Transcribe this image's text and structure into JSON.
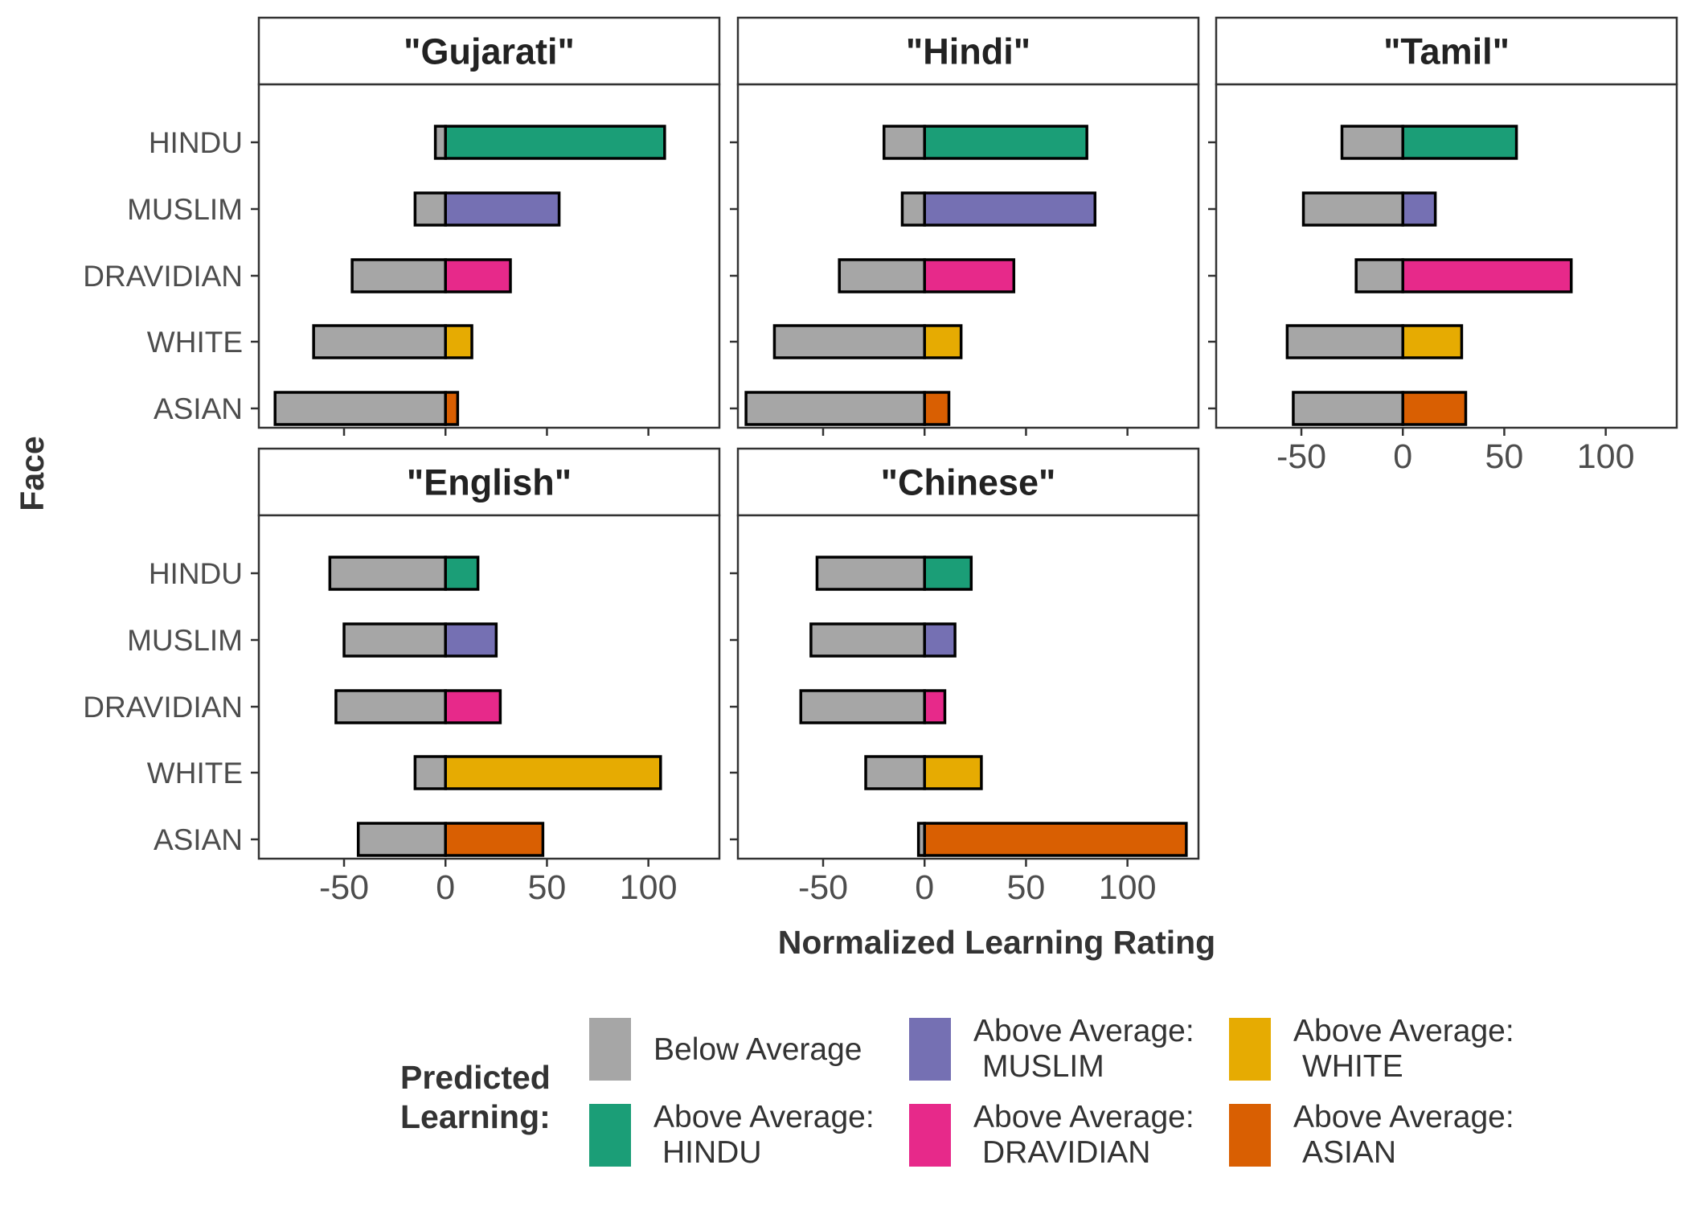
{
  "chart_data": {
    "type": "bar",
    "orientation": "horizontal",
    "faceted": true,
    "xlabel": "Normalized Learning Rating",
    "ylabel": "Face",
    "xlim": [
      -92,
      135
    ],
    "x_ticks": [
      -50,
      0,
      50,
      100
    ],
    "x_tick_labels": [
      "-50",
      "0",
      "50",
      "100"
    ],
    "categories": [
      "HINDU",
      "MUSLIM",
      "DRAVIDIAN",
      "WHITE",
      "ASIAN"
    ],
    "grid": false,
    "legend": {
      "title_lines": [
        "Predicted",
        "Learning:"
      ],
      "position": "bottom",
      "entries": [
        {
          "lines": [
            "Below Average"
          ],
          "color": "#a6a6a6"
        },
        {
          "lines": [
            "Above Average:",
            "HINDU"
          ],
          "color": "#1b9e77"
        },
        {
          "lines": [
            "Above Average:",
            "MUSLIM"
          ],
          "color": "#7570b3"
        },
        {
          "lines": [
            "Above Average:",
            "DRAVIDIAN"
          ],
          "color": "#e7298a"
        },
        {
          "lines": [
            "Above Average:",
            "WHITE"
          ],
          "color": "#e6ab02"
        },
        {
          "lines": [
            "Above Average:",
            "ASIAN"
          ],
          "color": "#d95f02"
        }
      ]
    },
    "colors": {
      "below": "#a6a6a6",
      "HINDU": "#1b9e77",
      "MUSLIM": "#7570b3",
      "DRAVIDIAN": "#e7298a",
      "WHITE": "#e6ab02",
      "ASIAN": "#d95f02"
    },
    "panels": [
      {
        "label": "\"Gujarati\"",
        "below": [
          -5,
          -15,
          -46,
          -65,
          -84
        ],
        "above": [
          108,
          56,
          32,
          13,
          6
        ]
      },
      {
        "label": "\"Hindi\"",
        "below": [
          -20,
          -11,
          -42,
          -74,
          -88
        ],
        "above": [
          80,
          84,
          44,
          18,
          12
        ]
      },
      {
        "label": "\"Tamil\"",
        "below": [
          -30,
          -49,
          -23,
          -57,
          -54
        ],
        "above": [
          56,
          16,
          83,
          29,
          31
        ]
      },
      {
        "label": "\"English\"",
        "below": [
          -57,
          -50,
          -54,
          -15,
          -43
        ],
        "above": [
          16,
          25,
          27,
          106,
          48
        ]
      },
      {
        "label": "\"Chinese\"",
        "below": [
          -53,
          -56,
          -61,
          -29,
          -3
        ],
        "above": [
          23,
          15,
          10,
          28,
          129
        ]
      }
    ]
  }
}
